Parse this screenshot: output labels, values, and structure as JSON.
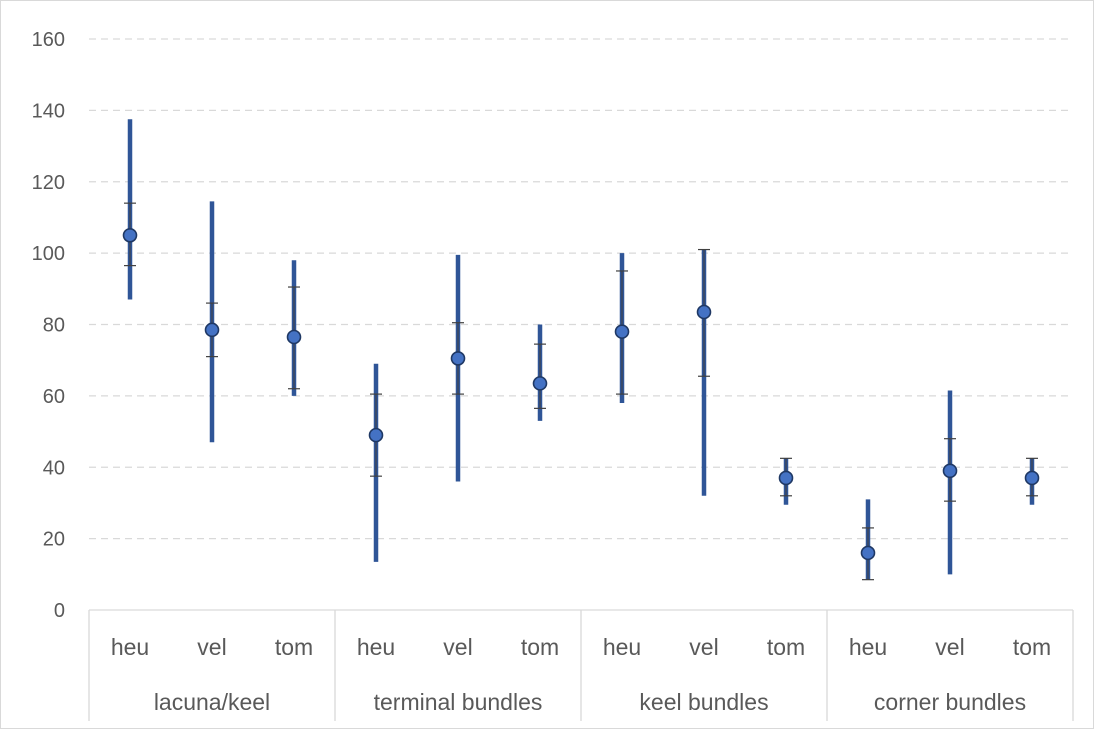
{
  "chart_data": {
    "type": "scatter",
    "subtype": "range-error-bars",
    "title": "",
    "xlabel": "",
    "ylabel": "",
    "ylim": [
      0,
      160
    ],
    "yticks": [
      0,
      20,
      40,
      60,
      80,
      100,
      120,
      140,
      160
    ],
    "grid": true,
    "legend": "none",
    "groups": [
      {
        "label": "lacuna/keel",
        "categories": [
          "heu",
          "vel",
          "tom"
        ]
      },
      {
        "label": "terminal bundles",
        "categories": [
          "heu",
          "vel",
          "tom"
        ]
      },
      {
        "label": "keel bundles",
        "categories": [
          "heu",
          "vel",
          "tom"
        ]
      },
      {
        "label": "corner bundles",
        "categories": [
          "heu",
          "vel",
          "tom"
        ]
      }
    ],
    "points": [
      {
        "group": "lacuna/keel",
        "category": "heu",
        "mean": 105,
        "min": 87,
        "max": 137.5,
        "lower": 96.5,
        "upper": 114
      },
      {
        "group": "lacuna/keel",
        "category": "vel",
        "mean": 78.5,
        "min": 47,
        "max": 114.5,
        "lower": 71,
        "upper": 86
      },
      {
        "group": "lacuna/keel",
        "category": "tom",
        "mean": 76.5,
        "min": 60,
        "max": 98,
        "lower": 62,
        "upper": 90.5
      },
      {
        "group": "terminal bundles",
        "category": "heu",
        "mean": 49,
        "min": 13.5,
        "max": 69,
        "lower": 37.5,
        "upper": 60.5
      },
      {
        "group": "terminal bundles",
        "category": "vel",
        "mean": 70.5,
        "min": 36,
        "max": 99.5,
        "lower": 60.5,
        "upper": 80.5
      },
      {
        "group": "terminal bundles",
        "category": "tom",
        "mean": 63.5,
        "min": 53,
        "max": 80,
        "lower": 56.5,
        "upper": 74.5
      },
      {
        "group": "keel bundles",
        "category": "heu",
        "mean": 78,
        "min": 58,
        "max": 100,
        "lower": 60.5,
        "upper": 95
      },
      {
        "group": "keel bundles",
        "category": "vel",
        "mean": 83.5,
        "min": 32,
        "max": 101,
        "lower": 65.5,
        "upper": 101
      },
      {
        "group": "keel bundles",
        "category": "tom",
        "mean": 37,
        "min": 29.5,
        "max": 42.5,
        "lower": 32,
        "upper": 42.5
      },
      {
        "group": "corner bundles",
        "category": "heu",
        "mean": 16,
        "min": 8.5,
        "max": 31,
        "lower": 8.5,
        "upper": 23
      },
      {
        "group": "corner bundles",
        "category": "vel",
        "mean": 39,
        "min": 10,
        "max": 61.5,
        "lower": 30.5,
        "upper": 48
      },
      {
        "group": "corner bundles",
        "category": "tom",
        "mean": 37,
        "min": 29.5,
        "max": 42.5,
        "lower": 32,
        "upper": 42.5
      }
    ],
    "colors": {
      "range_bar": "#2f5597",
      "marker_fill": "#4472c4",
      "marker_stroke": "#1f3864",
      "error_cap": "#404040",
      "grid": "#d9d9d9",
      "axis_text": "#595959"
    }
  }
}
